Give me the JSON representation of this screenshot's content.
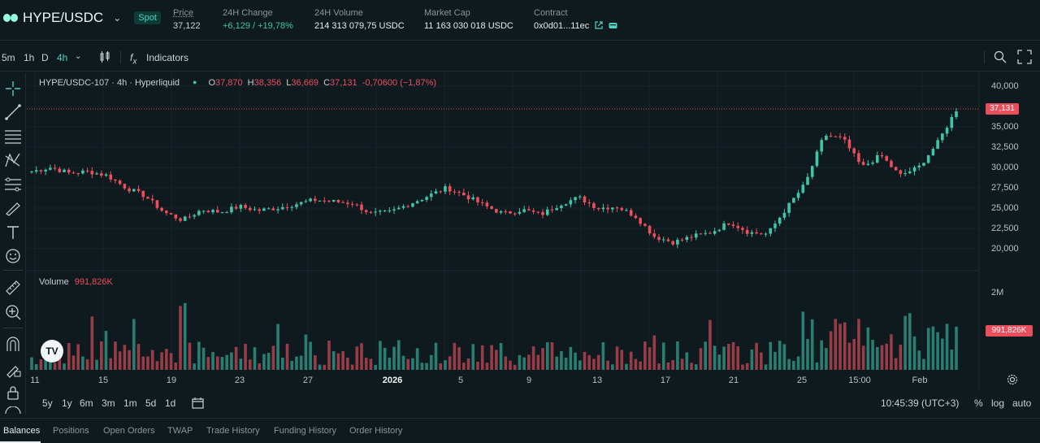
{
  "header": {
    "pair": "HYPE/USDC",
    "market_type": "Spot",
    "stats": [
      {
        "label": "Price",
        "value": "37,122"
      },
      {
        "label": "24H Change",
        "value": "+6,129 / +19,78%"
      },
      {
        "label": "24H Volume",
        "value": "214 313 079,75 USDC"
      },
      {
        "label": "Market Cap",
        "value": "11 163 030 018 USDC"
      },
      {
        "label": "Contract",
        "value": "0x0d01...11ec"
      }
    ]
  },
  "toolbar": {
    "timeframes": [
      "5m",
      "1h",
      "D",
      "4h"
    ],
    "active_timeframe": "4h",
    "indicators_label": "Indicators"
  },
  "legend": {
    "symbol": "HYPE/USDC-107 · 4h · Hyperliquid",
    "o_label": "O",
    "o_value": "37,870",
    "h_label": "H",
    "h_value": "38,356",
    "l_label": "L",
    "l_value": "36,669",
    "c_label": "C",
    "c_value": "37,131",
    "change": "-0,70600 (−1,87%)"
  },
  "volume_legend": {
    "label": "Volume",
    "value": "991,826K"
  },
  "price_axis": [
    "40,000",
    "37,500",
    "35,000",
    "32,500",
    "30,000",
    "27,500",
    "25,000",
    "22,500",
    "20,000"
  ],
  "price_badge": "37,131",
  "volume_axis": [
    "2M"
  ],
  "volume_badge": "991,826K",
  "time_axis": [
    "11",
    "15",
    "19",
    "23",
    "27",
    "2026",
    "5",
    "9",
    "13",
    "17",
    "21",
    "25",
    "15:00",
    "Feb"
  ],
  "ranges": [
    "5y",
    "1y",
    "6m",
    "3m",
    "1m",
    "5d",
    "1d"
  ],
  "clock": "10:45:39 (UTC+3)",
  "scale_options": [
    "%",
    "log",
    "auto"
  ],
  "tabs": [
    "Balances",
    "Positions",
    "Open Orders",
    "TWAP",
    "Trade History",
    "Funding History",
    "Order History"
  ],
  "colors": {
    "up": "#3ec6a6",
    "down": "#ed4e5d",
    "background": "#0f1a1f",
    "accent": "#50d2c1"
  },
  "chart_data": {
    "type": "candlestick",
    "series": [
      {
        "name": "HYPE/USDC-107",
        "interval": "4h"
      }
    ],
    "close_path_approx": [
      29.5,
      30.0,
      29.3,
      29.5,
      29.0,
      27.5,
      26.5,
      24.5,
      23.5,
      24.8,
      24.5,
      25.2,
      24.7,
      25.0,
      25.5,
      26.0,
      25.8,
      25.6,
      24.3,
      24.5,
      25.5,
      26.5,
      27.5,
      26.5,
      25.3,
      24.3,
      24.8,
      24.2,
      25.5,
      26.3,
      25.0,
      25.2,
      24.0,
      21.5,
      20.8,
      21.5,
      22.0,
      23.3,
      22.0,
      21.8,
      25.0,
      28.0,
      34.0,
      33.5,
      30.0,
      31.5,
      29.0,
      30.0,
      33.0,
      37.1
    ],
    "ylim": [
      19000,
      41000
    ],
    "volume_max_label": "2M"
  }
}
